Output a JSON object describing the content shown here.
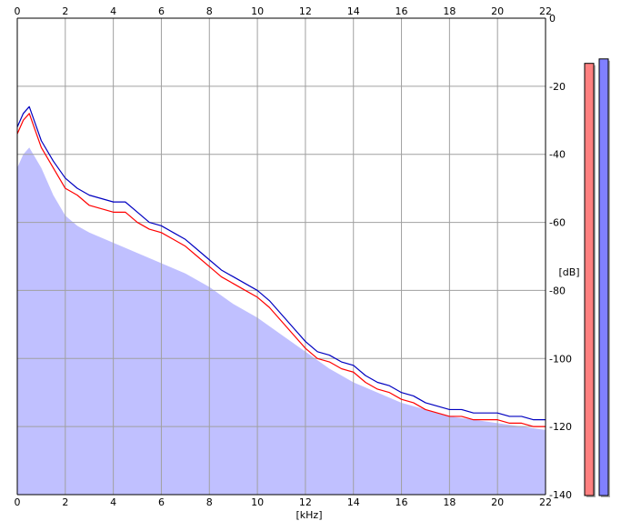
{
  "chart_data": {
    "type": "area",
    "title": "",
    "xlabel": "[kHz]",
    "ylabel": "[dB]",
    "xlim": [
      0,
      22
    ],
    "ylim": [
      -140,
      0
    ],
    "x_ticks": [
      0,
      2,
      4,
      6,
      8,
      10,
      12,
      14,
      16,
      18,
      20,
      22
    ],
    "y_ticks": [
      0,
      -20,
      -40,
      -60,
      -80,
      -100,
      -120,
      -140
    ],
    "y_tick_labels": [
      "0",
      "-20",
      "-40",
      "-60",
      "-80",
      "-100",
      "-120",
      "-140"
    ],
    "grid": true,
    "legend": "none",
    "series": [
      {
        "color": "#ff0000",
        "x": [
          0,
          0.25,
          0.5,
          0.75,
          1,
          1.5,
          2,
          2.5,
          3,
          3.5,
          4,
          4.5,
          5,
          5.5,
          6,
          6.5,
          7,
          7.5,
          8,
          8.5,
          9,
          9.5,
          10,
          10.5,
          11,
          11.5,
          12,
          12.5,
          13,
          13.5,
          14,
          14.5,
          15,
          15.5,
          16,
          16.5,
          17,
          17.5,
          18,
          18.5,
          19,
          19.5,
          20,
          20.5,
          21,
          21.5,
          22
        ],
        "values": [
          -34,
          -30,
          -28,
          -33,
          -38,
          -44,
          -50,
          -52,
          -55,
          -56,
          -57,
          -57,
          -60,
          -62,
          -63,
          -65,
          -67,
          -70,
          -73,
          -76,
          -78,
          -80,
          -82,
          -85,
          -89,
          -93,
          -97,
          -100,
          -101,
          -103,
          -104,
          -107,
          -109,
          -110,
          -112,
          -113,
          -115,
          -116,
          -117,
          -117,
          -118,
          -118,
          -118,
          -119,
          -119,
          -120,
          -120
        ]
      },
      {
        "color": "#0000c0",
        "x": [
          0,
          0.25,
          0.5,
          0.75,
          1,
          1.5,
          2,
          2.5,
          3,
          3.5,
          4,
          4.5,
          5,
          5.5,
          6,
          6.5,
          7,
          7.5,
          8,
          8.5,
          9,
          9.5,
          10,
          10.5,
          11,
          11.5,
          12,
          12.5,
          13,
          13.5,
          14,
          14.5,
          15,
          15.5,
          16,
          16.5,
          17,
          17.5,
          18,
          18.5,
          19,
          19.5,
          20,
          20.5,
          21,
          21.5,
          22
        ],
        "values": [
          -32,
          -28,
          -26,
          -31,
          -36,
          -42,
          -47,
          -50,
          -52,
          -53,
          -54,
          -54,
          -57,
          -60,
          -61,
          -63,
          -65,
          -68,
          -71,
          -74,
          -76,
          -78,
          -80,
          -83,
          -87,
          -91,
          -95,
          -98,
          -99,
          -101,
          -102,
          -105,
          -107,
          -108,
          -110,
          -111,
          -113,
          -114,
          -115,
          -115,
          -116,
          -116,
          -116,
          -117,
          -117,
          -118,
          -118
        ]
      }
    ],
    "fill": {
      "color": "#c0c0ff",
      "x": [
        0,
        0.25,
        0.5,
        1,
        1.5,
        2,
        2.5,
        3,
        4,
        5,
        6,
        7,
        8,
        9,
        10,
        11,
        12,
        13,
        14,
        15,
        16,
        17,
        18,
        19,
        20,
        21,
        22
      ],
      "values": [
        -44,
        -40,
        -38,
        -44,
        -52,
        -58,
        -61,
        -63,
        -66,
        -69,
        -72,
        -75,
        -79,
        -84,
        -88,
        -93,
        -98,
        -103,
        -107,
        -110,
        -113,
        -115,
        -117,
        -118,
        -119,
        -120,
        -121
      ]
    },
    "level_meters": [
      {
        "color": "#ff8080",
        "level": 0.97
      },
      {
        "color": "#8080ff",
        "level": 0.98
      }
    ]
  }
}
